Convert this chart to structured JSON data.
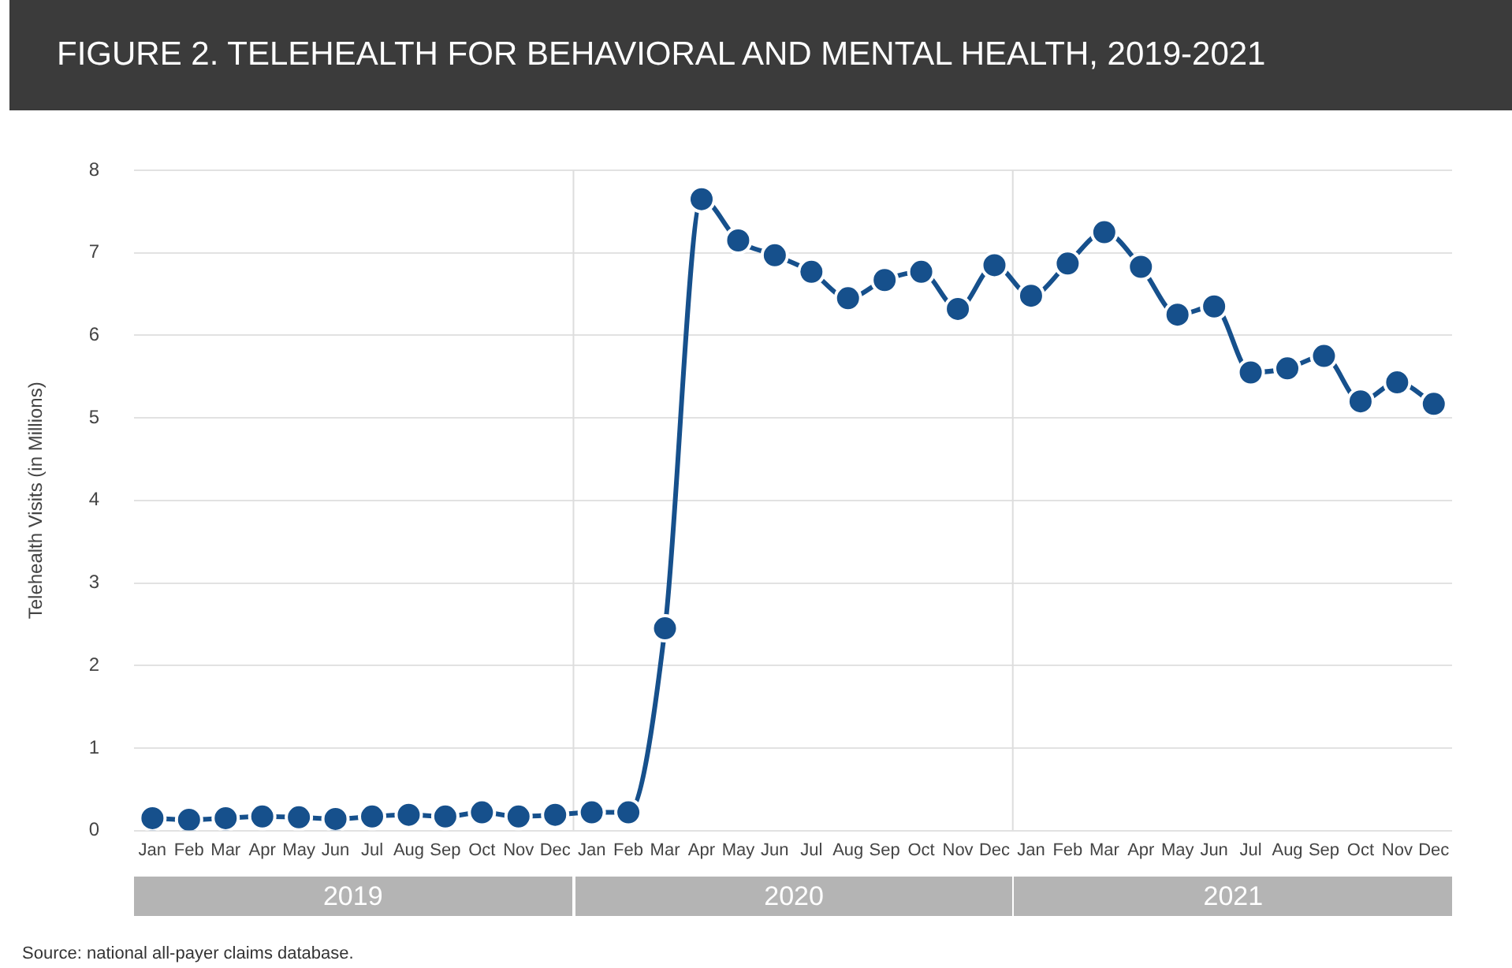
{
  "chart_data": {
    "type": "line",
    "title": "FIGURE 2.  TELEHEALTH FOR BEHAVIORAL AND MENTAL HEALTH, 2019-2021",
    "ylabel": "Telehealth Visits (in Millions)",
    "categories": [
      "Jan",
      "Feb",
      "Mar",
      "Apr",
      "May",
      "Jun",
      "Jul",
      "Aug",
      "Sep",
      "Oct",
      "Nov",
      "Dec",
      "Jan",
      "Feb",
      "Mar",
      "Apr",
      "May",
      "Jun",
      "Jul",
      "Aug",
      "Sep",
      "Oct",
      "Nov",
      "Dec",
      "Jan",
      "Feb",
      "Mar",
      "Apr",
      "May",
      "Jun",
      "Jul",
      "Aug",
      "Sep",
      "Oct",
      "Nov",
      "Dec"
    ],
    "series": [
      {
        "color": "#16508c",
        "values": [
          0.15,
          0.13,
          0.15,
          0.17,
          0.16,
          0.14,
          0.17,
          0.19,
          0.17,
          0.22,
          0.17,
          0.19,
          0.22,
          0.22,
          2.45,
          7.65,
          7.15,
          6.97,
          6.77,
          6.45,
          6.67,
          6.77,
          6.32,
          6.85,
          6.48,
          6.87,
          7.25,
          6.83,
          6.25,
          6.35,
          5.55,
          5.6,
          5.75,
          5.2,
          5.43,
          5.17
        ]
      }
    ],
    "ylim": [
      0,
      8
    ],
    "yticks": [
      0,
      1,
      2,
      3,
      4,
      5,
      6,
      7,
      8
    ],
    "grid": "y",
    "legend": false,
    "marker": "circle",
    "line_style": "solid",
    "annotations": [
      "2019",
      "2020",
      "2021",
      "Source: national all-payer claims database."
    ]
  }
}
